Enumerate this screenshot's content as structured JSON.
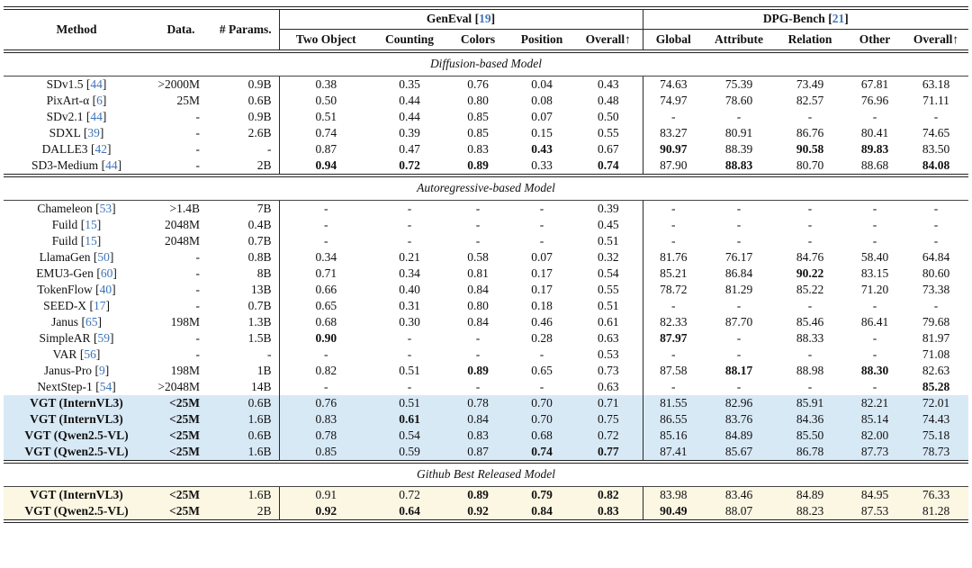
{
  "header": {
    "method": "Method",
    "data": "Data.",
    "params": "# Params.",
    "groups": [
      {
        "label": "GenEval",
        "cite": "19"
      },
      {
        "label": "DPG-Bench",
        "cite": "21"
      }
    ],
    "geneval_cols": [
      "Two Object",
      "Counting",
      "Colors",
      "Position",
      "Overall↑"
    ],
    "dpg_cols": [
      "Global",
      "Attribute",
      "Relation",
      "Other",
      "Overall↑"
    ]
  },
  "colors": {
    "citation_blue": "#3d74b8",
    "highlight_blue": "#d8e9f6",
    "highlight_yellow": "#fbf7e3"
  },
  "sections": [
    {
      "title": "Diffusion-based Model",
      "rows": [
        {
          "method": "SDv1.5",
          "cite": "44",
          "data": ">2000M",
          "params": "0.9B",
          "values": [
            "0.38",
            "0.35",
            "0.76",
            "0.04",
            "0.43",
            "74.63",
            "75.39",
            "73.49",
            "67.81",
            "63.18"
          ],
          "bold": []
        },
        {
          "method": "PixArt-α",
          "cite": "6",
          "data": "25M",
          "params": "0.6B",
          "values": [
            "0.50",
            "0.44",
            "0.80",
            "0.08",
            "0.48",
            "74.97",
            "78.60",
            "82.57",
            "76.96",
            "71.11"
          ],
          "bold": []
        },
        {
          "method": "SDv2.1",
          "cite": "44",
          "data": "-",
          "params": "0.9B",
          "values": [
            "0.51",
            "0.44",
            "0.85",
            "0.07",
            "0.50",
            "-",
            "-",
            "-",
            "-",
            "-"
          ],
          "bold": []
        },
        {
          "method": "SDXL",
          "cite": "39",
          "data": "-",
          "params": "2.6B",
          "values": [
            "0.74",
            "0.39",
            "0.85",
            "0.15",
            "0.55",
            "83.27",
            "80.91",
            "86.76",
            "80.41",
            "74.65"
          ],
          "bold": []
        },
        {
          "method": "DALLE3",
          "cite": "42",
          "data": "-",
          "params": "-",
          "values": [
            "0.87",
            "0.47",
            "0.83",
            "0.43",
            "0.67",
            "90.97",
            "88.39",
            "90.58",
            "89.83",
            "83.50"
          ],
          "bold": [
            3,
            5,
            7,
            8
          ]
        },
        {
          "method": "SD3-Medium",
          "cite": "44",
          "data": "-",
          "params": "2B",
          "values": [
            "0.94",
            "0.72",
            "0.89",
            "0.33",
            "0.74",
            "87.90",
            "88.83",
            "80.70",
            "88.68",
            "84.08"
          ],
          "bold": [
            0,
            1,
            2,
            4,
            6,
            9
          ]
        }
      ]
    },
    {
      "title": "Autoregressive-based Model",
      "rows": [
        {
          "method": "Chameleon",
          "cite": "53",
          "data": ">1.4B",
          "params": "7B",
          "values": [
            "-",
            "-",
            "-",
            "-",
            "0.39",
            "-",
            "-",
            "-",
            "-",
            "-"
          ],
          "bold": []
        },
        {
          "method": "Fuild",
          "cite": "15",
          "data": "2048M",
          "params": "0.4B",
          "values": [
            "-",
            "-",
            "-",
            "-",
            "0.45",
            "-",
            "-",
            "-",
            "-",
            "-"
          ],
          "bold": []
        },
        {
          "method": "Fuild",
          "cite": "15",
          "data": "2048M",
          "params": "0.7B",
          "values": [
            "-",
            "-",
            "-",
            "-",
            "0.51",
            "-",
            "-",
            "-",
            "-",
            "-"
          ],
          "bold": []
        },
        {
          "method": "LlamaGen",
          "cite": "50",
          "data": "-",
          "params": "0.8B",
          "values": [
            "0.34",
            "0.21",
            "0.58",
            "0.07",
            "0.32",
            "81.76",
            "76.17",
            "84.76",
            "58.40",
            "64.84"
          ],
          "bold": []
        },
        {
          "method": "EMU3-Gen",
          "cite": "60",
          "data": "-",
          "params": "8B",
          "values": [
            "0.71",
            "0.34",
            "0.81",
            "0.17",
            "0.54",
            "85.21",
            "86.84",
            "90.22",
            "83.15",
            "80.60"
          ],
          "bold": [
            7
          ]
        },
        {
          "method": "TokenFlow",
          "cite": "40",
          "data": "-",
          "params": "13B",
          "values": [
            "0.66",
            "0.40",
            "0.84",
            "0.17",
            "0.55",
            "78.72",
            "81.29",
            "85.22",
            "71.20",
            "73.38"
          ],
          "bold": []
        },
        {
          "method": "SEED-X",
          "cite": "17",
          "data": "-",
          "params": "0.7B",
          "values": [
            "0.65",
            "0.31",
            "0.80",
            "0.18",
            "0.51",
            "-",
            "-",
            "-",
            "-",
            "-"
          ],
          "bold": []
        },
        {
          "method": "Janus",
          "cite": "65",
          "data": "198M",
          "params": "1.3B",
          "values": [
            "0.68",
            "0.30",
            "0.84",
            "0.46",
            "0.61",
            "82.33",
            "87.70",
            "85.46",
            "86.41",
            "79.68"
          ],
          "bold": []
        },
        {
          "method": "SimpleAR",
          "cite": "59",
          "data": "-",
          "params": "1.5B",
          "values": [
            "0.90",
            "-",
            "-",
            "0.28",
            "0.63",
            "87.97",
            "-",
            "88.33",
            "-",
            "81.97"
          ],
          "bold": [
            0,
            5
          ]
        },
        {
          "method": "VAR",
          "cite": "56",
          "data": "-",
          "params": "-",
          "values": [
            "-",
            "-",
            "-",
            "-",
            "0.53",
            "-",
            "-",
            "-",
            "-",
            "71.08"
          ],
          "bold": []
        },
        {
          "method": "Janus-Pro",
          "cite": "9",
          "data": "198M",
          "params": "1B",
          "values": [
            "0.82",
            "0.51",
            "0.89",
            "0.65",
            "0.73",
            "87.58",
            "88.17",
            "88.98",
            "88.30",
            "82.63"
          ],
          "bold": [
            2,
            6,
            8
          ]
        },
        {
          "method": "NextStep-1",
          "cite": "54",
          "data": ">2048M",
          "params": "14B",
          "values": [
            "-",
            "-",
            "-",
            "-",
            "0.63",
            "-",
            "-",
            "-",
            "-",
            "85.28"
          ],
          "bold": [
            9
          ]
        },
        {
          "method": "VGT (InternVL3)",
          "data": "<25M",
          "params": "0.6B",
          "values": [
            "0.76",
            "0.51",
            "0.78",
            "0.70",
            "0.71",
            "81.55",
            "82.96",
            "85.91",
            "82.21",
            "72.01"
          ],
          "bold": [],
          "emph": true,
          "hl": "blue"
        },
        {
          "method": "VGT (InternVL3)",
          "data": "<25M",
          "params": "1.6B",
          "values": [
            "0.83",
            "0.61",
            "0.84",
            "0.70",
            "0.75",
            "86.55",
            "83.76",
            "84.36",
            "85.14",
            "74.43"
          ],
          "bold": [
            1
          ],
          "emph": true,
          "hl": "blue"
        },
        {
          "method": "VGT (Qwen2.5-VL)",
          "data": "<25M",
          "params": "0.6B",
          "values": [
            "0.78",
            "0.54",
            "0.83",
            "0.68",
            "0.72",
            "85.16",
            "84.89",
            "85.50",
            "82.00",
            "75.18"
          ],
          "bold": [],
          "emph": true,
          "hl": "blue"
        },
        {
          "method": "VGT (Qwen2.5-VL)",
          "data": "<25M",
          "params": "1.6B",
          "values": [
            "0.85",
            "0.59",
            "0.87",
            "0.74",
            "0.77",
            "87.41",
            "85.67",
            "86.78",
            "87.73",
            "78.73"
          ],
          "bold": [
            3,
            4
          ],
          "emph": true,
          "hl": "blue"
        }
      ]
    },
    {
      "title": "Github Best Released Model",
      "rows": [
        {
          "method": "VGT (InternVL3)",
          "data": "<25M",
          "params": "1.6B",
          "values": [
            "0.91",
            "0.72",
            "0.89",
            "0.79",
            "0.82",
            "83.98",
            "83.46",
            "84.89",
            "84.95",
            "76.33"
          ],
          "bold": [
            2,
            3,
            4
          ],
          "emph": true,
          "hl": "yellow"
        },
        {
          "method": "VGT (Qwen2.5-VL)",
          "data": "<25M",
          "params": "2B",
          "values": [
            "0.92",
            "0.64",
            "0.92",
            "0.84",
            "0.83",
            "90.49",
            "88.07",
            "88.23",
            "87.53",
            "81.28"
          ],
          "bold": [
            0,
            1,
            2,
            3,
            4,
            5
          ],
          "emph": true,
          "hl": "yellow"
        }
      ]
    }
  ]
}
